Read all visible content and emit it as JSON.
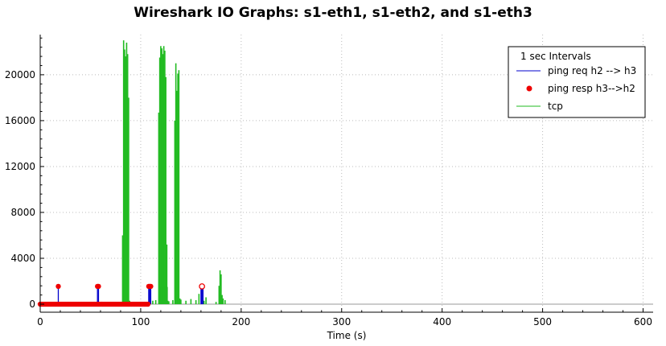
{
  "chart_data": {
    "type": "line",
    "title": "Wireshark IO Graphs: s1-eth1, s1-eth2, and s1-eth3",
    "xlabel": "Time (s)",
    "ylabel": "",
    "xlim": [
      0,
      610
    ],
    "ylim": [
      -700,
      23500
    ],
    "x_ticks": [
      0,
      100,
      200,
      300,
      400,
      500,
      600
    ],
    "y_ticks": [
      0,
      4000,
      8000,
      12000,
      16000,
      20000
    ],
    "grid": true,
    "legend": {
      "placement": "top-right",
      "title": "1 sec Intervals",
      "entries": [
        "ping req h2 --> h3",
        "ping resp h3-->h2",
        "tcp"
      ]
    },
    "colors": {
      "ping_req": "#0000cc",
      "ping_resp": "#ee0000",
      "tcp": "#22bb22",
      "tcp_fill": "#2e9e2e",
      "grid": "#bbbbbb"
    },
    "series": [
      {
        "name": "ping req h2 --> h3",
        "style": "stem",
        "x": [
          18,
          57,
          58,
          108,
          109,
          110,
          160,
          161,
          162
        ],
        "y": [
          1550,
          1550,
          1550,
          1550,
          1550,
          1550,
          1550,
          1300,
          1550
        ]
      },
      {
        "name": "ping resp h3-->h2",
        "style": "stem-markers",
        "marker_y": 1550,
        "x_markers": [
          18,
          57,
          58,
          108,
          109,
          110,
          161
        ],
        "open_markers": [
          161
        ],
        "baseline_markers": [
          0,
          108
        ],
        "baseline_step": 1.6
      },
      {
        "name": "tcp",
        "style": "spikes",
        "x": [
          82,
          83,
          84,
          85,
          86,
          87,
          88,
          89,
          90,
          91,
          95,
          100,
          105,
          112,
          115,
          118,
          119,
          120,
          121,
          122,
          123,
          124,
          125,
          126,
          127,
          128,
          132,
          134,
          135,
          136,
          137,
          138,
          139,
          140,
          145,
          150,
          155,
          158,
          163,
          165,
          175,
          178,
          179,
          180,
          181,
          182,
          184
        ],
        "y": [
          6000,
          23000,
          22200,
          21600,
          22800,
          21800,
          18000,
          300,
          200,
          150,
          200,
          150,
          200,
          300,
          350,
          16700,
          21500,
          22500,
          22300,
          21800,
          22500,
          22100,
          19800,
          5200,
          300,
          250,
          350,
          16000,
          21000,
          18600,
          20100,
          20400,
          500,
          400,
          300,
          450,
          350,
          900,
          300,
          600,
          200,
          1600,
          2950,
          2600,
          800,
          500,
          350
        ],
        "band_x": [
          118,
          127
        ],
        "band_y": 1500
      }
    ]
  }
}
